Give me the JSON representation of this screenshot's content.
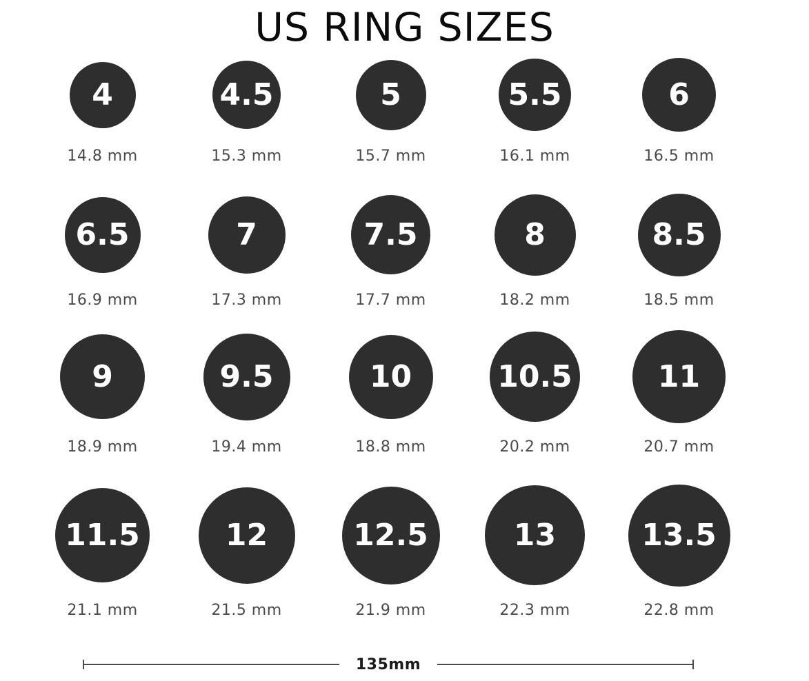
{
  "title": "US RING SIZES",
  "colors": {
    "circle_fill": "#2e2e2e",
    "size_number_text": "#ffffff",
    "mm_label_text": "#4a4a4a",
    "title_text": "#0b0b0b",
    "scale_bar_line": "#4a4a4a"
  },
  "scale_bar": {
    "label": "135mm"
  },
  "rings": [
    [
      {
        "size": "4",
        "mm": "14.8 mm",
        "mm_value": 14.8
      },
      {
        "size": "4.5",
        "mm": "15.3 mm",
        "mm_value": 15.3
      },
      {
        "size": "5",
        "mm": "15.7 mm",
        "mm_value": 15.7
      },
      {
        "size": "5.5",
        "mm": "16.1 mm",
        "mm_value": 16.1
      },
      {
        "size": "6",
        "mm": "16.5 mm",
        "mm_value": 16.5
      }
    ],
    [
      {
        "size": "6.5",
        "mm": "16.9 mm",
        "mm_value": 16.9
      },
      {
        "size": "7",
        "mm": "17.3 mm",
        "mm_value": 17.3
      },
      {
        "size": "7.5",
        "mm": "17.7 mm",
        "mm_value": 17.7
      },
      {
        "size": "8",
        "mm": "18.2 mm",
        "mm_value": 18.2
      },
      {
        "size": "8.5",
        "mm": "18.5 mm",
        "mm_value": 18.5
      }
    ],
    [
      {
        "size": "9",
        "mm": "18.9 mm",
        "mm_value": 18.9
      },
      {
        "size": "9.5",
        "mm": "19.4 mm",
        "mm_value": 19.4
      },
      {
        "size": "10",
        "mm": "18.8 mm",
        "mm_value": 18.8
      },
      {
        "size": "10.5",
        "mm": "20.2 mm",
        "mm_value": 20.2
      },
      {
        "size": "11",
        "mm": "20.7 mm",
        "mm_value": 20.7
      }
    ],
    [
      {
        "size": "11.5",
        "mm": "21.1 mm",
        "mm_value": 21.1
      },
      {
        "size": "12",
        "mm": "21.5 mm",
        "mm_value": 21.5
      },
      {
        "size": "12.5",
        "mm": "21.9 mm",
        "mm_value": 21.9
      },
      {
        "size": "13",
        "mm": "22.3 mm",
        "mm_value": 22.3
      },
      {
        "size": "13.5",
        "mm": "22.8 mm",
        "mm_value": 22.8
      }
    ]
  ]
}
